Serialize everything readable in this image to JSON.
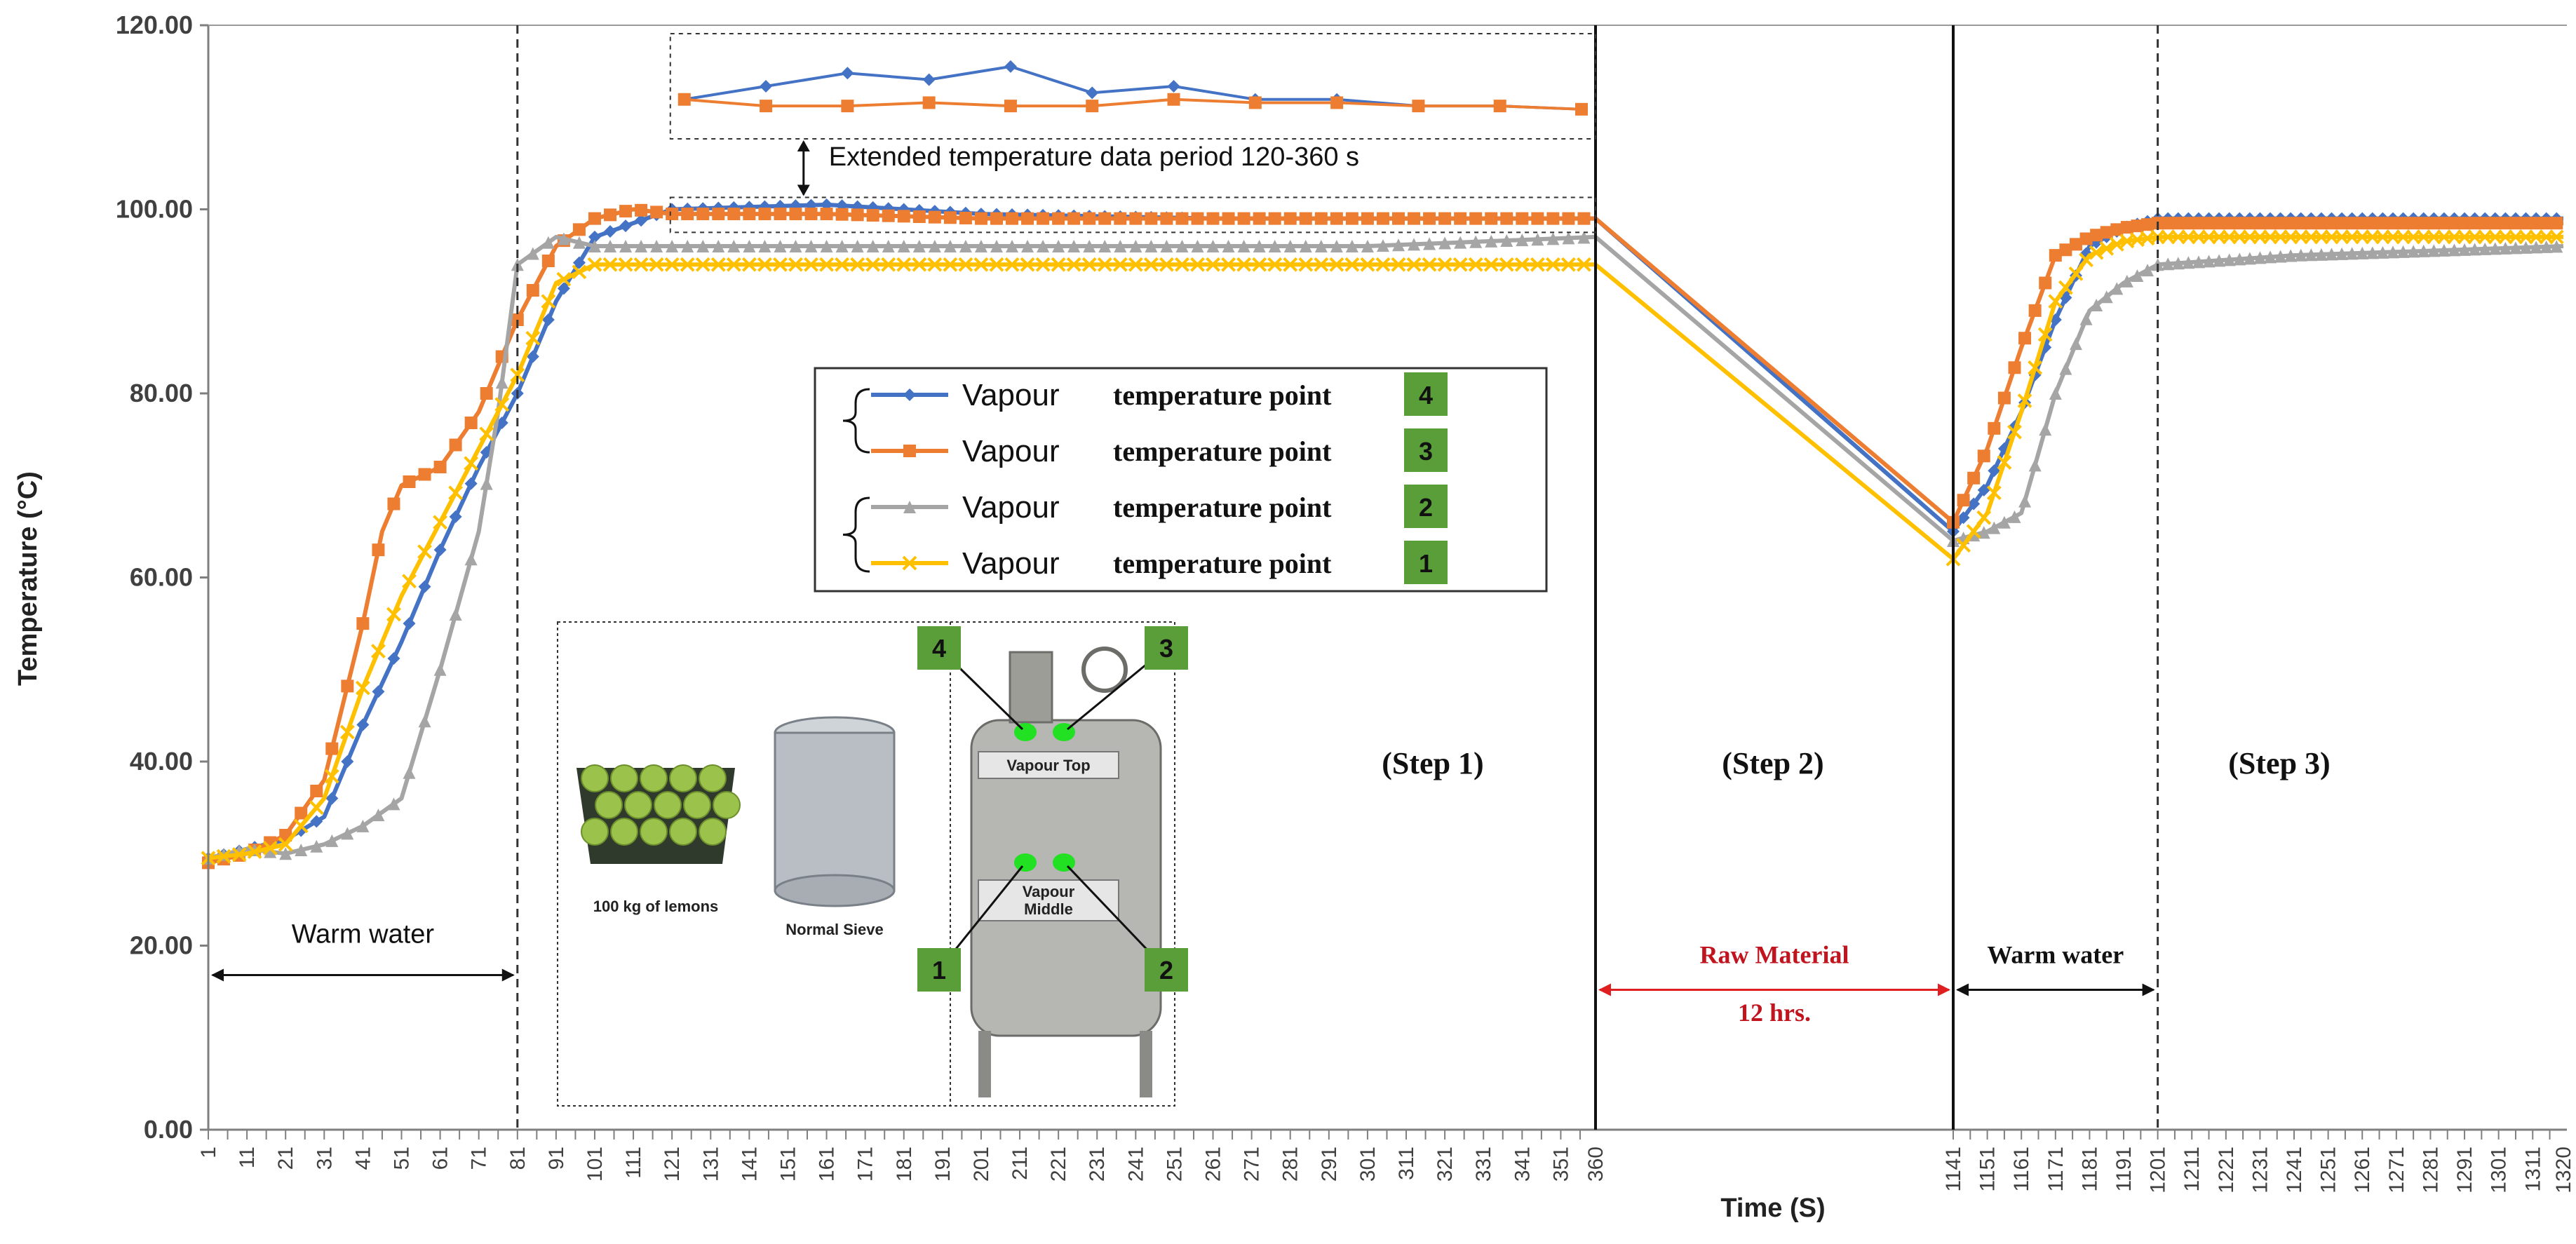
{
  "chart_data": {
    "type": "line",
    "title": "",
    "xlabel": "Time (S)",
    "ylabel": "Temperature (°C)",
    "ylim": [
      0,
      120
    ],
    "yticks": [
      "0.00",
      "20.00",
      "40.00",
      "60.00",
      "80.00",
      "100.00",
      "120.00"
    ],
    "grid": false,
    "x_segments": [
      {
        "start": 1,
        "end": 360,
        "label_step": 10
      },
      {
        "start": 1141,
        "end": 1320,
        "label_step": 10
      }
    ],
    "series": [
      {
        "name": "Vapour temperature point 4",
        "color": "#4472C4",
        "marker": "diamond",
        "x": [
          1,
          11,
          21,
          31,
          41,
          51,
          61,
          71,
          81,
          91,
          101,
          121,
          161,
          201,
          261,
          301,
          360,
          1141,
          1151,
          1161,
          1171,
          1181,
          1191,
          1201,
          1241,
          1281,
          1320
        ],
        "y": [
          29.5,
          30.5,
          31.5,
          34,
          44,
          53,
          63,
          72,
          80,
          90,
          97,
          100,
          100.5,
          99.5,
          99,
          99,
          99,
          65,
          70,
          78,
          88,
          96,
          98,
          99,
          99,
          99,
          99
        ]
      },
      {
        "name": "Vapour temperature point 3",
        "color": "#ED7D31",
        "marker": "square",
        "x": [
          1,
          11,
          21,
          31,
          41,
          46,
          51,
          61,
          71,
          81,
          91,
          101,
          111,
          121,
          161,
          201,
          261,
          301,
          360,
          1141,
          1151,
          1161,
          1171,
          1181,
          1191,
          1201,
          1241,
          1281,
          1320
        ],
        "y": [
          29,
          30,
          32,
          38,
          55,
          65,
          70,
          72,
          78,
          88,
          96,
          99,
          100,
          99.5,
          99.5,
          99,
          99,
          99,
          99,
          66,
          74,
          85,
          95,
          97,
          98,
          98.5,
          98.5,
          98.5,
          98.5
        ]
      },
      {
        "name": "Vapour temperature point 2",
        "color": "#A5A5A5",
        "marker": "triangle",
        "x": [
          1,
          11,
          21,
          31,
          41,
          51,
          56,
          61,
          71,
          76,
          81,
          91,
          101,
          121,
          161,
          201,
          261,
          301,
          360,
          1141,
          1151,
          1161,
          1171,
          1181,
          1191,
          1201,
          1241,
          1281,
          1320
        ],
        "y": [
          29.5,
          30.5,
          30,
          31,
          33,
          36,
          43,
          50,
          65,
          78,
          94,
          97,
          96,
          96,
          96,
          96,
          96,
          96,
          97,
          64,
          65,
          67,
          80,
          89,
          92,
          94,
          95,
          95.5,
          96
        ]
      },
      {
        "name": "Vapour temperature point 1",
        "color": "#FFC000",
        "marker": "x",
        "x": [
          1,
          11,
          21,
          31,
          41,
          51,
          61,
          71,
          81,
          91,
          101,
          121,
          161,
          201,
          261,
          301,
          360,
          1141,
          1151,
          1161,
          1171,
          1181,
          1191,
          1201,
          1241,
          1281,
          1320
        ],
        "y": [
          29.5,
          30,
          31,
          36,
          48,
          58,
          66,
          74,
          82,
          92,
          94,
          94,
          94,
          94,
          94,
          94,
          94,
          62,
          67,
          78,
          90,
          95,
          96.5,
          97,
          97,
          97,
          97
        ]
      }
    ],
    "inset": {
      "label": "Extended temperature data period 120-360 s",
      "series_y": {
        "Vapour temperature point 4": [
          110,
          112,
          114,
          113,
          115,
          111,
          112,
          110,
          110,
          109,
          109,
          108.5
        ],
        "Vapour temperature point 3": [
          110,
          109,
          109,
          109.5,
          109,
          109,
          110,
          109.5,
          109.5,
          109,
          109,
          108.5
        ]
      }
    },
    "legend": {
      "placement": "center",
      "entries": [
        {
          "word": "Vapour",
          "text": "temperature point",
          "badge": "4"
        },
        {
          "word": "Vapour",
          "text": "temperature point",
          "badge": "3"
        },
        {
          "word": "Vapour",
          "text": "temperature point",
          "badge": "2"
        },
        {
          "word": "Vapour",
          "text": "temperature point",
          "badge": "1"
        }
      ]
    },
    "annotations": {
      "warm_water_1": "Warm water",
      "step1": "(Step 1)",
      "step2": "(Step 2)",
      "step3": "(Step 3)",
      "raw_material": "Raw Material",
      "duration": "12 hrs.",
      "warm_water_2": "Warm water",
      "lemons": "100 kg of lemons",
      "sieve": "Normal Sieve",
      "vapour_top": "Vapour Top",
      "vapour_middle": "Vapour Middle",
      "points": [
        "4",
        "3",
        "1",
        "2"
      ]
    },
    "colors": {
      "raw_material_arrow": "#E02020",
      "badge_bg": "#5A9E3A",
      "sensor_dot": "#22E022"
    }
  }
}
